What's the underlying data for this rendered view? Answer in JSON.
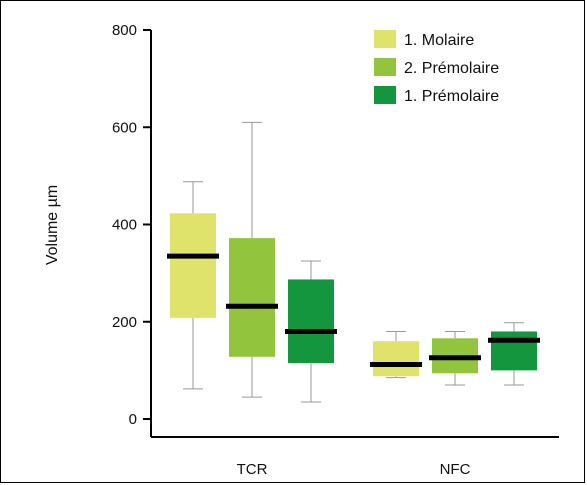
{
  "chart_data": {
    "type": "box",
    "ylabel": "Volume µm",
    "xlabel": "",
    "ylim": [
      0,
      800
    ],
    "yticks": [
      0,
      200,
      400,
      600,
      800
    ],
    "grid": false,
    "legend_position": "top-right",
    "categories": [
      "TCR",
      "NFC"
    ],
    "series": [
      {
        "name": "1. Molaire",
        "color": "#dfe36b",
        "boxes": [
          {
            "min": 62,
            "q1": 208,
            "median": 335,
            "q3": 423,
            "max": 488
          },
          {
            "min": 85,
            "q1": 88,
            "median": 112,
            "q3": 160,
            "max": 180
          }
        ]
      },
      {
        "name": "2. Prémolaire",
        "color": "#93c43e",
        "boxes": [
          {
            "min": 45,
            "q1": 128,
            "median": 232,
            "q3": 372,
            "max": 610
          },
          {
            "min": 70,
            "q1": 94,
            "median": 126,
            "q3": 166,
            "max": 180
          }
        ]
      },
      {
        "name": "1. Prémolaire",
        "color": "#14963f",
        "boxes": [
          {
            "min": 35,
            "q1": 115,
            "median": 180,
            "q3": 287,
            "max": 325
          },
          {
            "min": 70,
            "q1": 100,
            "median": 162,
            "q3": 180,
            "max": 198
          }
        ]
      }
    ]
  }
}
